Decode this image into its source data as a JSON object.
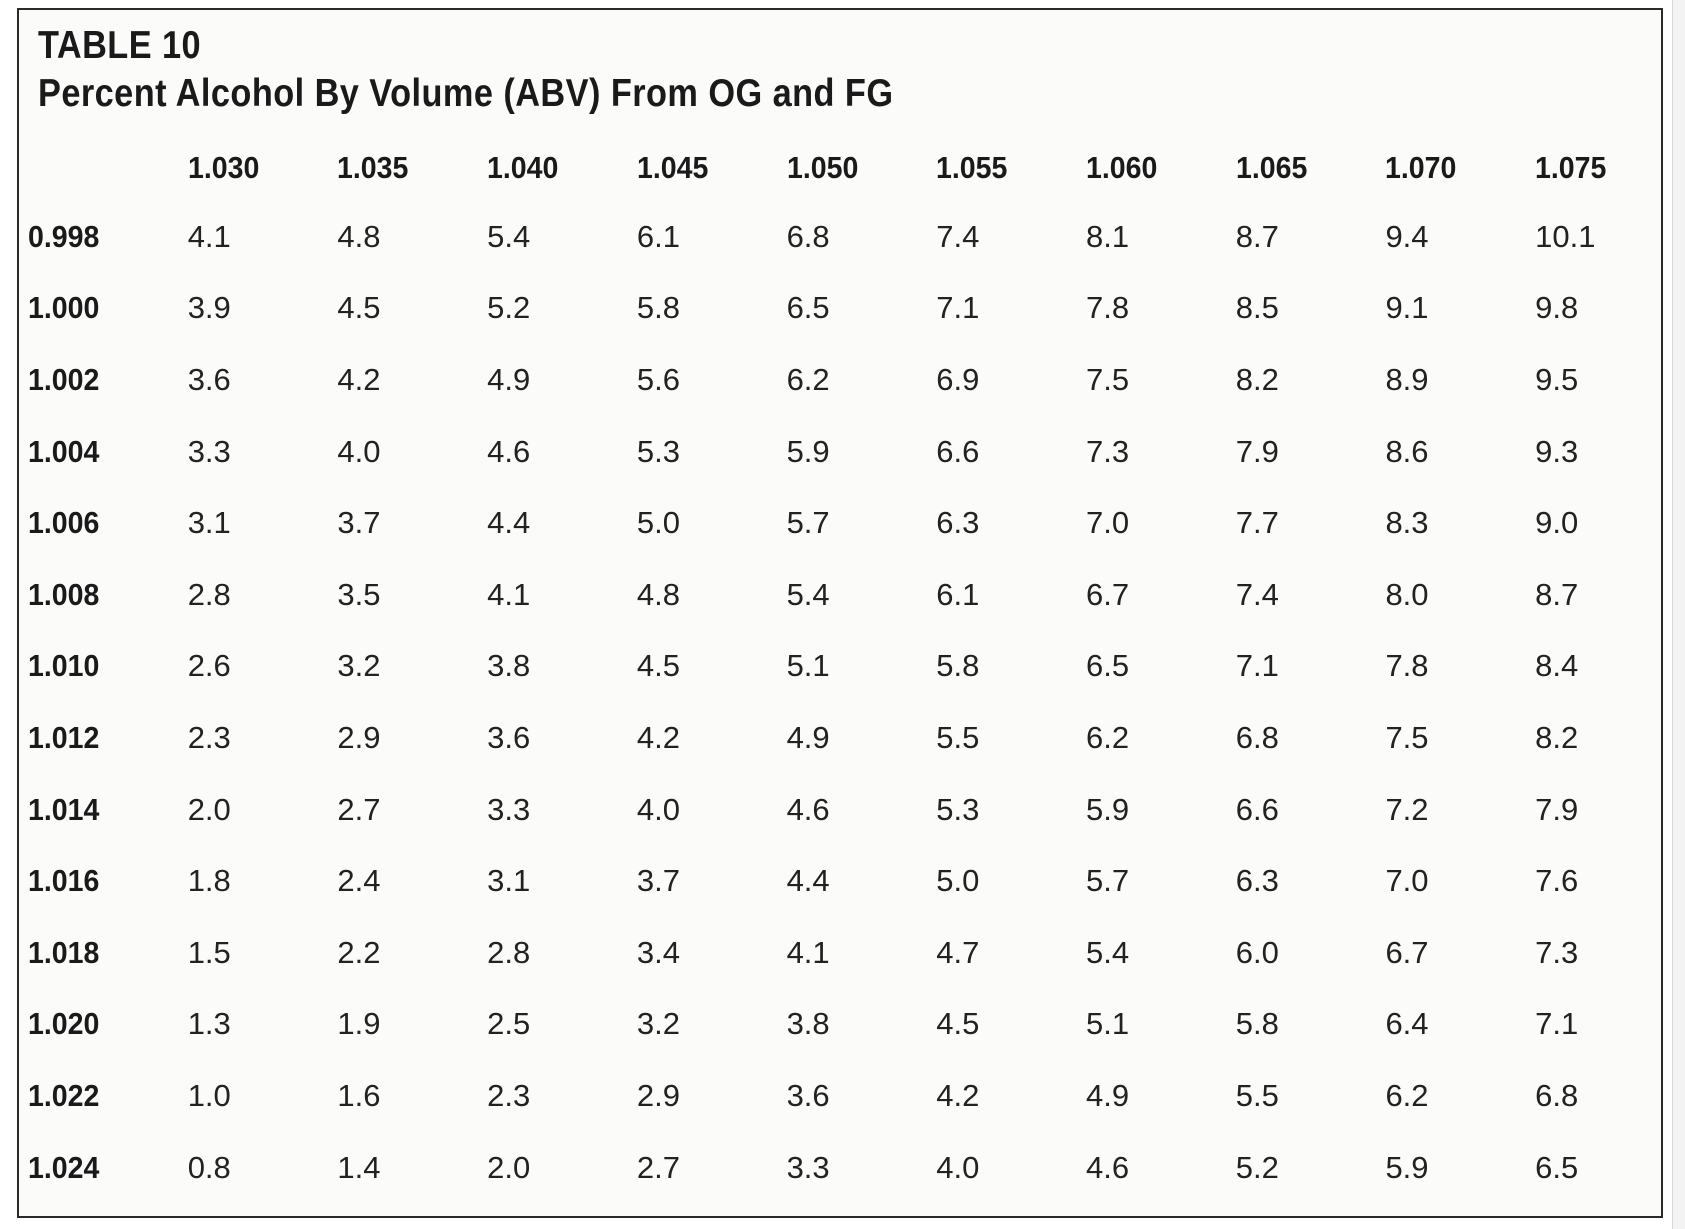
{
  "title": {
    "line1": "TABLE 10",
    "line2": "Percent Alcohol By Volume (ABV) From OG and FG"
  },
  "table": {
    "columns": [
      "1.030",
      "1.035",
      "1.040",
      "1.045",
      "1.050",
      "1.055",
      "1.060",
      "1.065",
      "1.070",
      "1.075"
    ],
    "rows": [
      {
        "fg": "0.998",
        "values": [
          "4.1",
          "4.8",
          "5.4",
          "6.1",
          "6.8",
          "7.4",
          "8.1",
          "8.7",
          "9.4",
          "10.1"
        ]
      },
      {
        "fg": "1.000",
        "values": [
          "3.9",
          "4.5",
          "5.2",
          "5.8",
          "6.5",
          "7.1",
          "7.8",
          "8.5",
          "9.1",
          "9.8"
        ]
      },
      {
        "fg": "1.002",
        "values": [
          "3.6",
          "4.2",
          "4.9",
          "5.6",
          "6.2",
          "6.9",
          "7.5",
          "8.2",
          "8.9",
          "9.5"
        ]
      },
      {
        "fg": "1.004",
        "values": [
          "3.3",
          "4.0",
          "4.6",
          "5.3",
          "5.9",
          "6.6",
          "7.3",
          "7.9",
          "8.6",
          "9.3"
        ]
      },
      {
        "fg": "1.006",
        "values": [
          "3.1",
          "3.7",
          "4.4",
          "5.0",
          "5.7",
          "6.3",
          "7.0",
          "7.7",
          "8.3",
          "9.0"
        ]
      },
      {
        "fg": "1.008",
        "values": [
          "2.8",
          "3.5",
          "4.1",
          "4.8",
          "5.4",
          "6.1",
          "6.7",
          "7.4",
          "8.0",
          "8.7"
        ]
      },
      {
        "fg": "1.010",
        "values": [
          "2.6",
          "3.2",
          "3.8",
          "4.5",
          "5.1",
          "5.8",
          "6.5",
          "7.1",
          "7.8",
          "8.4"
        ]
      },
      {
        "fg": "1.012",
        "values": [
          "2.3",
          "2.9",
          "3.6",
          "4.2",
          "4.9",
          "5.5",
          "6.2",
          "6.8",
          "7.5",
          "8.2"
        ]
      },
      {
        "fg": "1.014",
        "values": [
          "2.0",
          "2.7",
          "3.3",
          "4.0",
          "4.6",
          "5.3",
          "5.9",
          "6.6",
          "7.2",
          "7.9"
        ]
      },
      {
        "fg": "1.016",
        "values": [
          "1.8",
          "2.4",
          "3.1",
          "3.7",
          "4.4",
          "5.0",
          "5.7",
          "6.3",
          "7.0",
          "7.6"
        ]
      },
      {
        "fg": "1.018",
        "values": [
          "1.5",
          "2.2",
          "2.8",
          "3.4",
          "4.1",
          "4.7",
          "5.4",
          "6.0",
          "6.7",
          "7.3"
        ]
      },
      {
        "fg": "1.020",
        "values": [
          "1.3",
          "1.9",
          "2.5",
          "3.2",
          "3.8",
          "4.5",
          "5.1",
          "5.8",
          "6.4",
          "7.1"
        ]
      },
      {
        "fg": "1.022",
        "values": [
          "1.0",
          "1.6",
          "2.3",
          "2.9",
          "3.6",
          "4.2",
          "4.9",
          "5.5",
          "6.2",
          "6.8"
        ]
      },
      {
        "fg": "1.024",
        "values": [
          "0.8",
          "1.4",
          "2.0",
          "2.7",
          "3.3",
          "4.0",
          "4.6",
          "5.2",
          "5.9",
          "6.5"
        ]
      }
    ]
  }
}
